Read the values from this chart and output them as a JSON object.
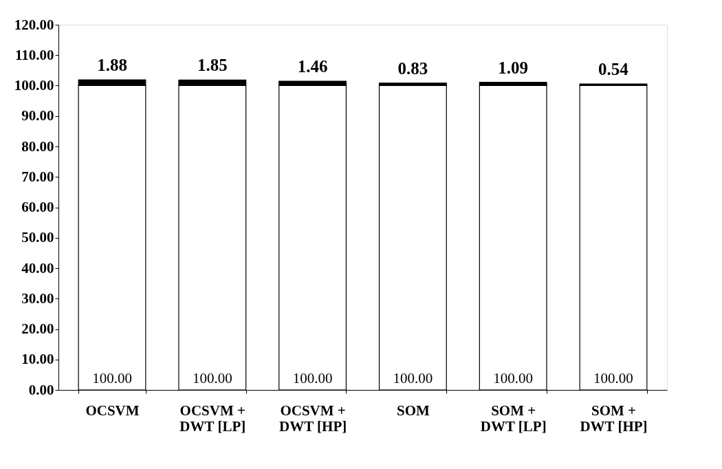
{
  "chart_data": {
    "type": "bar",
    "stacked": true,
    "grid": false,
    "legend": false,
    "categories": [
      "OCSVM",
      "OCSVM +\nDWT [LP]",
      "OCSVM +\nDWT [HP]",
      "SOM",
      "SOM +\nDWT [LP]",
      "SOM +\nDWT [HP]"
    ],
    "series": [
      {
        "color": "#ffffff",
        "values": [
          100,
          100,
          100,
          100,
          100,
          100
        ],
        "value_labels": [
          "100.00",
          "100.00",
          "100.00",
          "100.00",
          "100.00",
          "100.00"
        ]
      },
      {
        "color": "#000000",
        "values": [
          1.88,
          1.85,
          1.46,
          0.83,
          1.09,
          0.54
        ],
        "value_labels": [
          "1.88",
          "1.85",
          "1.46",
          "0.83",
          "1.09",
          "0.54"
        ]
      }
    ],
    "ylim": [
      0,
      120
    ],
    "yticks": [
      {
        "value": 0,
        "label": "0.00"
      },
      {
        "value": 10,
        "label": "10.00"
      },
      {
        "value": 20,
        "label": "20.00"
      },
      {
        "value": 30,
        "label": "30.00"
      },
      {
        "value": 40,
        "label": "40.00"
      },
      {
        "value": 50,
        "label": "50.00"
      },
      {
        "value": 60,
        "label": "60.00"
      },
      {
        "value": 70,
        "label": "70.00"
      },
      {
        "value": 80,
        "label": "80.00"
      },
      {
        "value": 90,
        "label": "90.00"
      },
      {
        "value": 100,
        "label": "100.00"
      },
      {
        "value": 110,
        "label": "110.00"
      },
      {
        "value": 120,
        "label": "120.00"
      }
    ]
  }
}
